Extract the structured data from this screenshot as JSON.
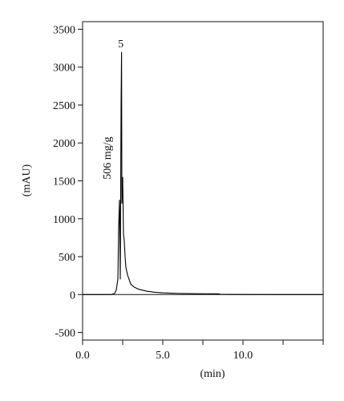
{
  "chart_data": {
    "type": "line",
    "title": "",
    "xlabel": "(min)",
    "ylabel": "(mAU)",
    "xlim": [
      0,
      15
    ],
    "ylim": [
      -600,
      3600
    ],
    "x_ticks": [
      0,
      2.5,
      5,
      7.5,
      10,
      12.5,
      15
    ],
    "x_tick_labels": [
      "0.0",
      "5.0",
      "10.0"
    ],
    "x_tick_label_values": [
      0,
      5,
      10
    ],
    "y_ticks": [
      -500,
      0,
      500,
      1000,
      1500,
      2000,
      2500,
      3000,
      3500
    ],
    "y_tick_labels": [
      "-500",
      "0",
      "500",
      "1000",
      "1500",
      "2000",
      "2500",
      "3000",
      "3500"
    ],
    "grid": false,
    "legend": "none",
    "series": [
      {
        "color": "#000000",
        "x": [
          0,
          1.8,
          2.0,
          2.1,
          2.2,
          2.25,
          2.3,
          2.35,
          2.4,
          2.43,
          2.45,
          2.5,
          2.55,
          2.6,
          2.65,
          2.7,
          2.8,
          2.9,
          3.0,
          3.2,
          3.5,
          4.0,
          4.5,
          5.0,
          5.5,
          6.0,
          7.0,
          8.0,
          8.5,
          8.6,
          9.0,
          10.0,
          12.0,
          15.0
        ],
        "y": [
          0,
          0,
          15,
          60,
          200,
          900,
          1250,
          200,
          2500,
          3200,
          1200,
          1550,
          800,
          700,
          500,
          360,
          260,
          200,
          140,
          100,
          70,
          45,
          30,
          22,
          18,
          15,
          12,
          10,
          9,
          3,
          2,
          1,
          0,
          0
        ]
      }
    ],
    "annotations": [
      {
        "text": "5",
        "x": 2.43,
        "y": 3200
      },
      {
        "text": "506 mg/g",
        "x": 1.5,
        "y": 1800,
        "rotation": -90
      }
    ]
  }
}
